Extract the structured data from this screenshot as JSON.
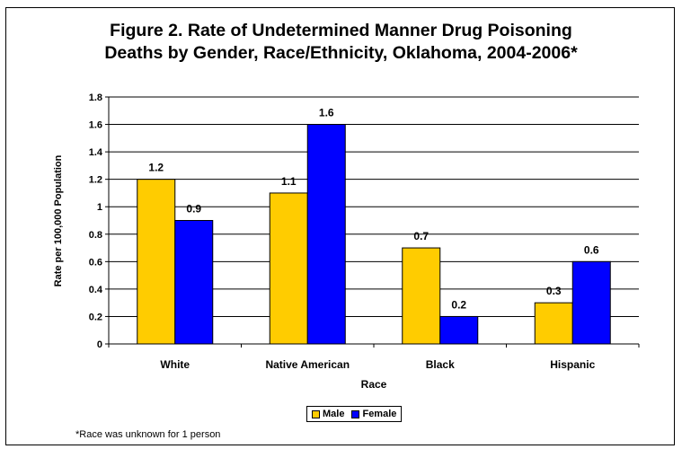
{
  "title_lines": [
    "Figure 2. Rate of Undetermined Manner Drug Poisoning",
    "Deaths by Gender, Race/Ethnicity, Oklahoma, 2004-2006*"
  ],
  "footnote": "*Race was unknown for 1 person",
  "chart_data": {
    "type": "bar",
    "title": "Figure 2. Rate of Undetermined Manner Drug Poisoning Deaths by Gender, Race/Ethnicity, Oklahoma, 2004-2006*",
    "xlabel": "Race",
    "ylabel": "Rate per 100,000 Population",
    "categories": [
      "White",
      "Native American",
      "Black",
      "Hispanic"
    ],
    "series": [
      {
        "name": "Male",
        "color": "#ffcc00",
        "values": [
          1.2,
          1.1,
          0.7,
          0.3
        ],
        "labels": [
          "1.2",
          "1.1",
          "0.7",
          "0.3"
        ]
      },
      {
        "name": "Female",
        "color": "#0000ff",
        "values": [
          0.9,
          1.6,
          0.2,
          0.6
        ],
        "labels": [
          "0.9",
          "1.6",
          "0.2",
          "0.6"
        ]
      }
    ],
    "ylim": [
      0,
      1.8
    ],
    "yticks": [
      0,
      0.2,
      0.4,
      0.6,
      0.8,
      1,
      1.2,
      1.4,
      1.6,
      1.8
    ],
    "ytick_labels": [
      "0",
      "0.2",
      "0.4",
      "0.6",
      "0.8",
      "1",
      "1.2",
      "1.4",
      "1.6",
      "1.8"
    ],
    "grid": true,
    "legend_position": "bottom"
  }
}
